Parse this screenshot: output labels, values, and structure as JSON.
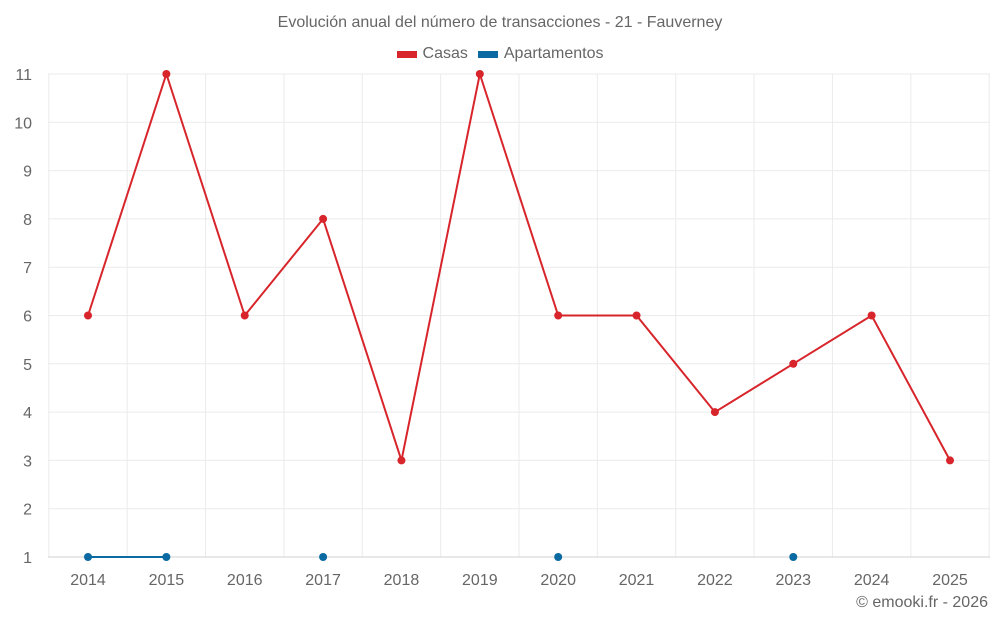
{
  "title": "Evolución anual del número de transacciones - 21 - Fauverney",
  "legend": [
    {
      "label": "Casas",
      "color": "#d7252b"
    },
    {
      "label": "Apartamentos",
      "color": "#0a6aa1"
    }
  ],
  "credit": "© emooki.fr - 2026",
  "chart_data": {
    "type": "line",
    "title": "Evolución anual del número de transacciones - 21 - Fauverney",
    "xlabel": "",
    "ylabel": "",
    "categories": [
      "2014",
      "2015",
      "2016",
      "2017",
      "2018",
      "2019",
      "2020",
      "2021",
      "2022",
      "2023",
      "2024",
      "2025"
    ],
    "series": [
      {
        "name": "Casas",
        "color": "#d7252b",
        "values": [
          6,
          11,
          6,
          8,
          3,
          11,
          6,
          6,
          4,
          5,
          6,
          3
        ]
      },
      {
        "name": "Apartamentos",
        "color": "#0a6aa1",
        "values": [
          1,
          1,
          null,
          1,
          null,
          null,
          1,
          null,
          null,
          1,
          null,
          null
        ]
      }
    ],
    "ylim": [
      1,
      11
    ],
    "yticks": [
      1,
      2,
      3,
      4,
      5,
      6,
      7,
      8,
      9,
      10,
      11
    ],
    "grid": true,
    "legend_position": "top"
  }
}
